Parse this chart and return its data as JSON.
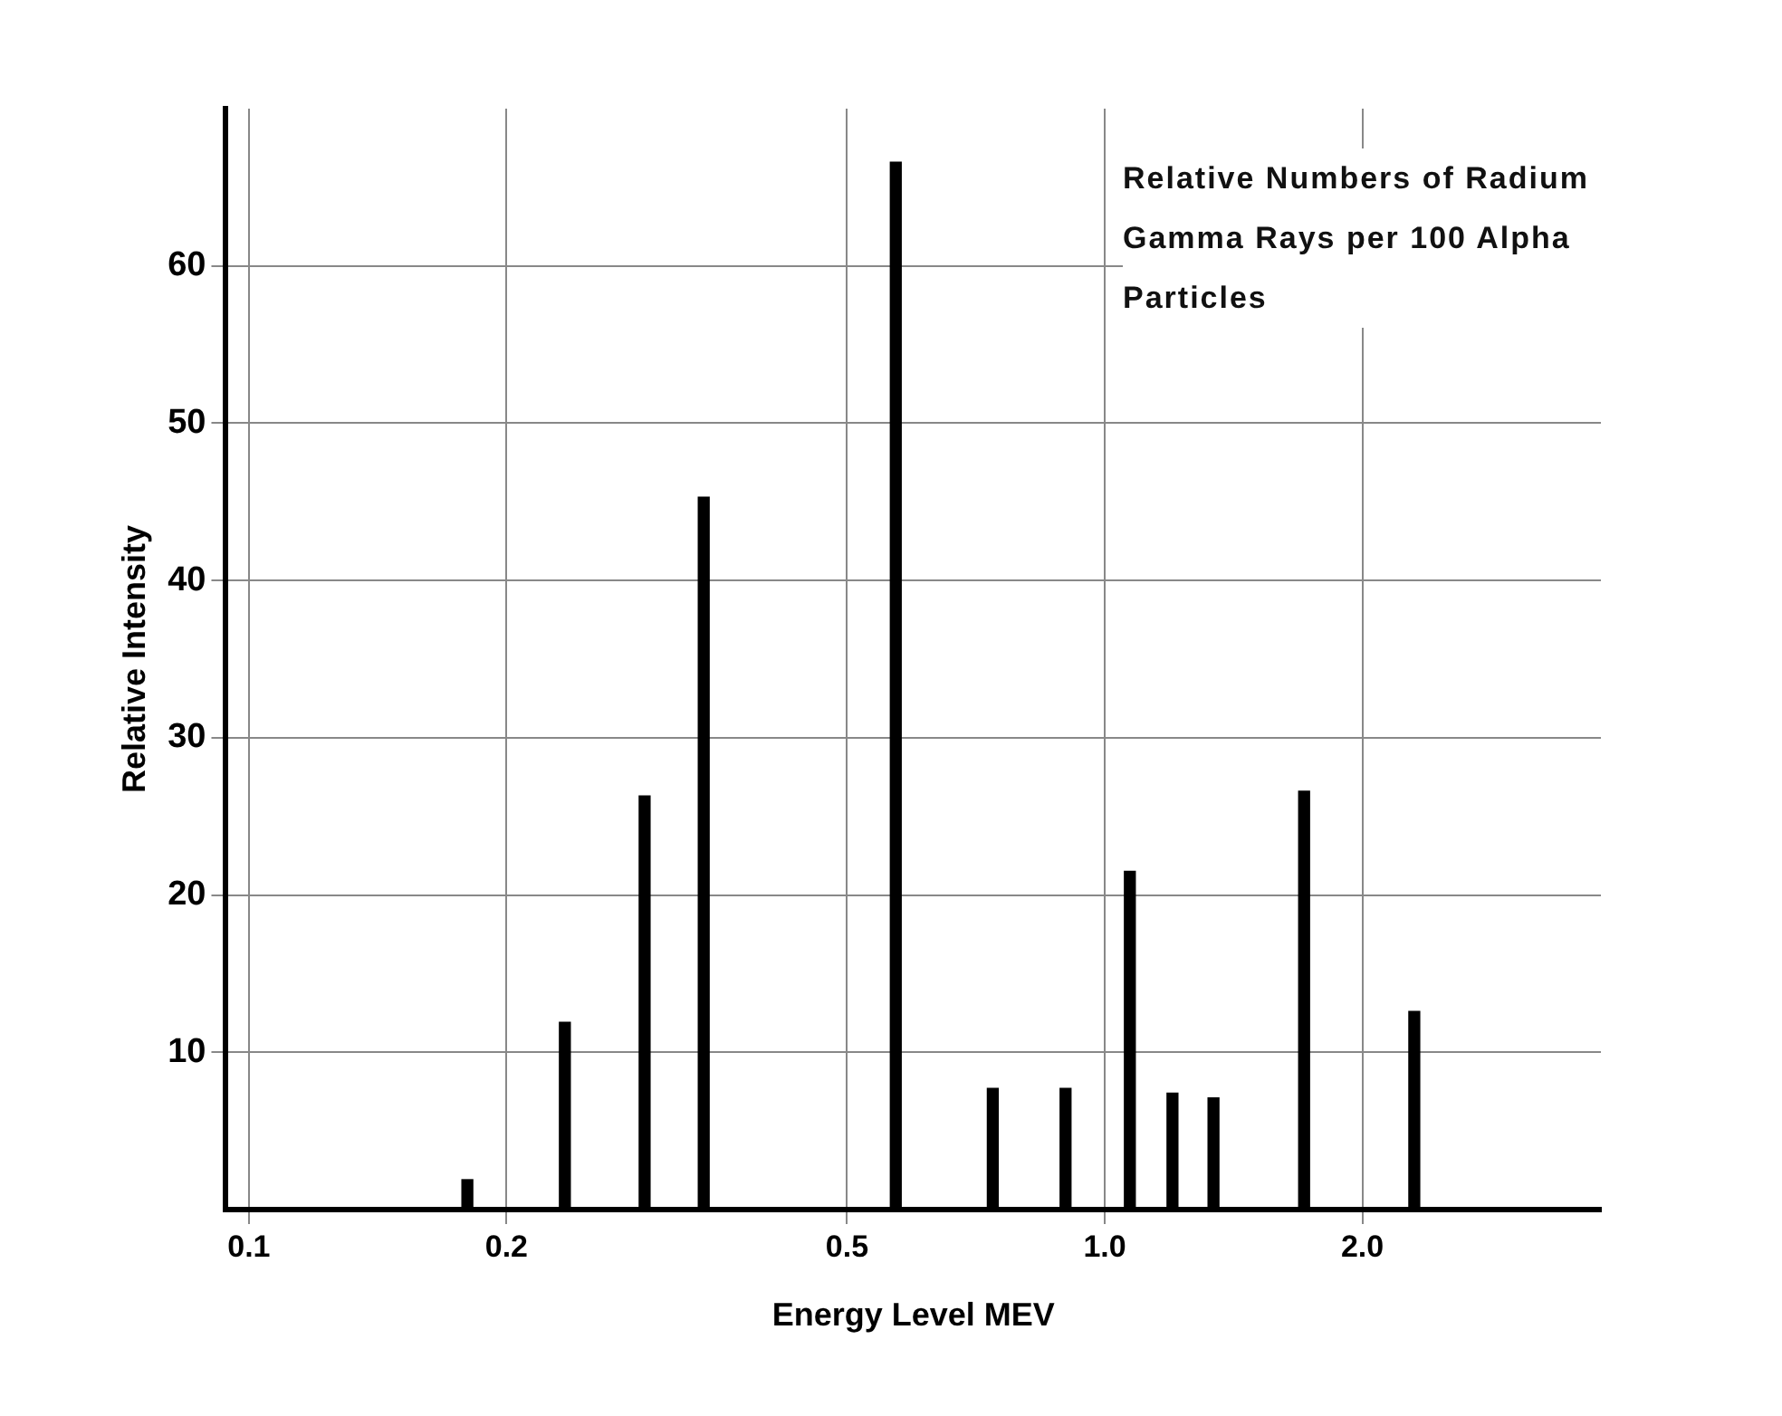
{
  "chart_data": {
    "type": "bar",
    "title": "Relative Numbers of Radium Gamma Rays per 100 Alpha Particles",
    "xlabel": "Energy Level MEV",
    "ylabel": "Relative Intensity",
    "x": [
      0.18,
      0.234,
      0.29,
      0.34,
      0.57,
      0.74,
      0.9,
      1.07,
      1.2,
      1.34,
      1.71,
      2.3
    ],
    "values": [
      1.9,
      11.9,
      26.3,
      45.3,
      66.6,
      7.7,
      7.7,
      21.5,
      7.4,
      7.1,
      26.6,
      12.6
    ],
    "color": "#000000",
    "log": "x",
    "xlim": [
      0.094,
      3.8
    ],
    "xticks": [
      {
        "value": 0.1,
        "label": "0.1"
      },
      0.2,
      0.5,
      {
        "value": 1,
        "label": "1.0"
      },
      {
        "value": 2,
        "label": "2.0"
      }
    ],
    "ylim": [
      0,
      70
    ],
    "yticks": [
      10,
      20,
      30,
      40,
      50,
      60
    ],
    "grid": true
  }
}
